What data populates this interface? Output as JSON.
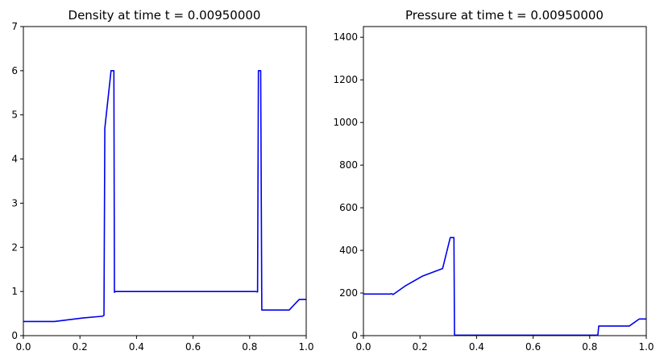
{
  "chart_data": [
    {
      "type": "line",
      "title": "Density at time t =     0.00950000",
      "xlabel": "",
      "ylabel": "",
      "xlim": [
        0,
        1
      ],
      "ylim": [
        0,
        7
      ],
      "xticks": [
        "0.0",
        "0.2",
        "0.4",
        "0.6",
        "0.8",
        "1.0"
      ],
      "yticks": [
        "0",
        "1",
        "2",
        "3",
        "4",
        "5",
        "6",
        "7"
      ],
      "grid": false,
      "line_color": "#0000ee",
      "series": [
        {
          "x": [
            0.0,
            0.11,
            0.21,
            0.28,
            0.285,
            0.288,
            0.31,
            0.316,
            0.318,
            0.32,
            0.322,
            0.325,
            0.82,
            0.828,
            0.831,
            0.836,
            0.839,
            0.843,
            0.94,
            0.975,
            1.0
          ],
          "y": [
            0.32,
            0.32,
            0.4,
            0.44,
            0.46,
            4.7,
            6.0,
            6.0,
            6.0,
            6.0,
            0.98,
            1.0,
            1.0,
            0.99,
            6.0,
            6.0,
            6.0,
            0.58,
            0.58,
            0.82,
            0.82
          ]
        }
      ]
    },
    {
      "type": "line",
      "title": "Pressure at time t =     0.00950000",
      "xlabel": "",
      "ylabel": "",
      "xlim": [
        0,
        1
      ],
      "ylim": [
        0,
        1450
      ],
      "xticks": [
        "0.0",
        "0.2",
        "0.4",
        "0.6",
        "0.8",
        "1.0"
      ],
      "yticks": [
        "0",
        "200",
        "400",
        "600",
        "800",
        "1000",
        "1200",
        "1400"
      ],
      "grid": false,
      "line_color": "#0000ee",
      "series": [
        {
          "x": [
            0.0,
            0.095,
            0.1,
            0.105,
            0.15,
            0.21,
            0.28,
            0.307,
            0.32,
            0.322,
            0.324,
            0.826,
            0.829,
            0.832,
            0.94,
            0.975,
            1.0
          ],
          "y": [
            195,
            195,
            197,
            193,
            235,
            280,
            315,
            460,
            460,
            5,
            2,
            2,
            5,
            45,
            45,
            78,
            78
          ]
        }
      ]
    }
  ]
}
